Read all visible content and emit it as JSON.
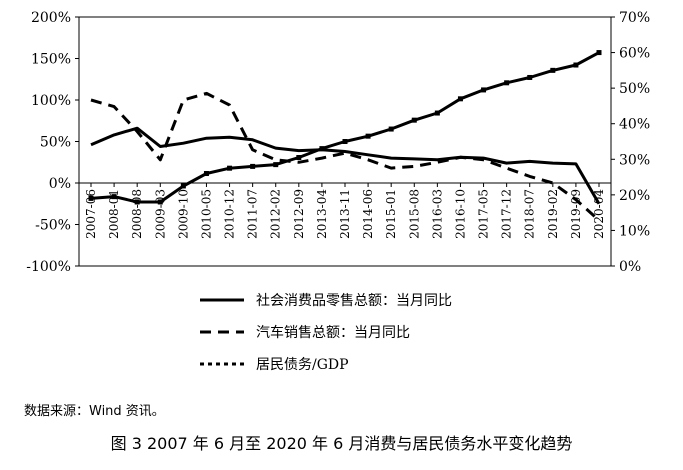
{
  "chart_data": {
    "type": "line",
    "caption": "图 3 2007 年 6 月至 2020 年 6 月消费与居民债务水平变化趋势",
    "source_note": "数据来源：Wind 资讯。",
    "x_categories": [
      "2007-06",
      "2008-01",
      "2008-08",
      "2009-03",
      "2009-10",
      "2010-05",
      "2010-12",
      "2011-07",
      "2012-02",
      "2012-09",
      "2013-04",
      "2013-11",
      "2014-06",
      "2015-01",
      "2015-08",
      "2016-03",
      "2016-10",
      "2017-05",
      "2017-12",
      "2018-07",
      "2019-02",
      "2019-09",
      "2020-04"
    ],
    "x_tick_labels": [
      "2007-06",
      "2008-01",
      "2008-08",
      "2009-03",
      "2009-10",
      "2010-05",
      "2010-12",
      "2011-07",
      "2012-02",
      "2012-09",
      "2013-04",
      "2013-11",
      "2014-06",
      "2015-01",
      "2015-08",
      "2016-03",
      "2016-10",
      "2017-05",
      "2017-12",
      "2018-07",
      "2019-02",
      "2019-09",
      "2020-04"
    ],
    "y_left": {
      "min": -100,
      "max": 200,
      "ticks": [
        -100,
        -50,
        0,
        50,
        100,
        150,
        200
      ],
      "tick_labels": [
        "-100%",
        "-50%",
        "0%",
        "50%",
        "100%",
        "150%",
        "200%"
      ]
    },
    "y_right": {
      "min": 0,
      "max": 70,
      "ticks": [
        0,
        10,
        20,
        30,
        40,
        50,
        60,
        70
      ],
      "tick_labels": [
        "0%",
        "10%",
        "20%",
        "30%",
        "40%",
        "50%",
        "60%",
        "70%"
      ]
    },
    "grid": false,
    "legend_position": "bottom-center",
    "series": [
      {
        "name": "社会消费品零售总额：当月同比",
        "axis": "left",
        "style": "solid",
        "color": "#000000",
        "values": [
          46,
          58,
          66,
          44,
          48,
          54,
          55,
          52,
          42,
          39,
          40,
          38,
          34,
          30,
          29,
          28,
          31,
          30,
          24,
          26,
          24,
          23,
          -25
        ]
      },
      {
        "name": "汽车销售总额：当月同比",
        "axis": "left",
        "style": "dashed",
        "color": "#000000",
        "values": [
          100,
          92,
          62,
          28,
          100,
          108,
          94,
          40,
          28,
          25,
          30,
          36,
          28,
          18,
          20,
          25,
          31,
          28,
          18,
          8,
          0,
          -20,
          -45
        ]
      },
      {
        "name": "居民债务/GDP",
        "axis": "right",
        "style": "solid-marker",
        "color": "#000000",
        "values": [
          19,
          19.5,
          18,
          18,
          22.5,
          26,
          27.5,
          28,
          28.5,
          30.5,
          33,
          35,
          36.5,
          38.5,
          41,
          43,
          47,
          49.5,
          51.5,
          53,
          55,
          56.5,
          60
        ]
      }
    ]
  }
}
